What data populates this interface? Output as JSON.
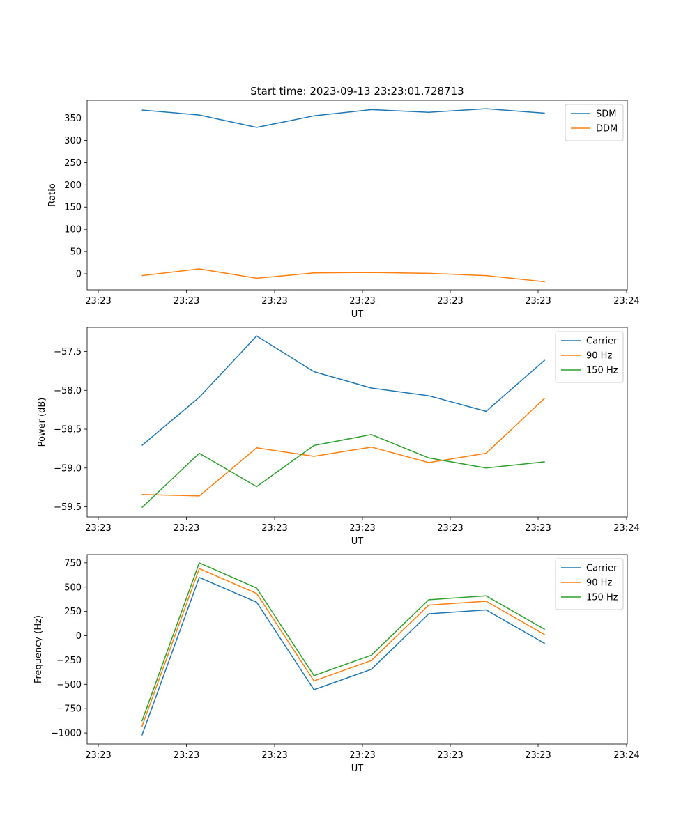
{
  "figure": {
    "title": "Start time: 2023-09-13 23:23:01.728713"
  },
  "chart_data": [
    {
      "type": "line",
      "xlabel": "UT",
      "ylabel": "Ratio",
      "x_ticks": [
        "23:23",
        "23:23",
        "23:23",
        "23:23",
        "23:23",
        "23:23",
        "23:24"
      ],
      "y_ticks": [
        "0",
        "50",
        "100",
        "150",
        "200",
        "250",
        "300",
        "350"
      ],
      "y_tick_values": [
        0,
        50,
        100,
        150,
        200,
        250,
        300,
        350
      ],
      "ylim": [
        -36,
        390
      ],
      "legend_position": "top-right",
      "series": [
        {
          "name": "SDM",
          "color": "#1f77b4",
          "values": [
            368,
            357,
            329,
            355,
            369,
            363,
            371,
            361
          ]
        },
        {
          "name": "DDM",
          "color": "#ff7f0e",
          "values": [
            -4,
            11,
            -10,
            2,
            3,
            1,
            -4,
            -18
          ]
        }
      ]
    },
    {
      "type": "line",
      "xlabel": "UT",
      "ylabel": "Power (dB)",
      "x_ticks": [
        "23:23",
        "23:23",
        "23:23",
        "23:23",
        "23:23",
        "23:23",
        "23:24"
      ],
      "y_ticks": [
        "−59.5",
        "−59.0",
        "−58.5",
        "−58.0",
        "−57.5"
      ],
      "y_tick_values": [
        -59.5,
        -59.0,
        -58.5,
        -58.0,
        -57.5
      ],
      "ylim": [
        -59.63,
        -57.19
      ],
      "legend_position": "top-right",
      "series": [
        {
          "name": "Carrier",
          "color": "#1f77b4",
          "values": [
            -58.71,
            -58.09,
            -57.3,
            -57.76,
            -57.97,
            -58.07,
            -58.27,
            -57.61
          ]
        },
        {
          "name": "90 Hz",
          "color": "#ff7f0e",
          "values": [
            -59.34,
            -59.36,
            -58.74,
            -58.85,
            -58.73,
            -58.93,
            -58.81,
            -58.1
          ]
        },
        {
          "name": "150 Hz",
          "color": "#2ca02c",
          "values": [
            -59.51,
            -58.81,
            -59.24,
            -58.71,
            -58.57,
            -58.87,
            -59.0,
            -58.92
          ]
        }
      ]
    },
    {
      "type": "line",
      "xlabel": "UT",
      "ylabel": "Frequency (Hz)",
      "x_ticks": [
        "23:23",
        "23:23",
        "23:23",
        "23:23",
        "23:23",
        "23:23",
        "23:24"
      ],
      "y_ticks": [
        "−1000",
        "−750",
        "−500",
        "−250",
        "0",
        "250",
        "500",
        "750"
      ],
      "y_tick_values": [
        -1000,
        -750,
        -500,
        -250,
        0,
        250,
        500,
        750
      ],
      "ylim": [
        -1114,
        835
      ],
      "legend_position": "top-right",
      "series": [
        {
          "name": "Carrier",
          "color": "#1f77b4",
          "values": [
            -1025,
            600,
            345,
            -555,
            -345,
            225,
            265,
            -80
          ]
        },
        {
          "name": "90 Hz",
          "color": "#ff7f0e",
          "values": [
            -935,
            690,
            435,
            -465,
            -255,
            315,
            355,
            10
          ]
        },
        {
          "name": "150 Hz",
          "color": "#2ca02c",
          "values": [
            -880,
            750,
            490,
            -410,
            -200,
            370,
            410,
            65
          ]
        }
      ]
    }
  ]
}
